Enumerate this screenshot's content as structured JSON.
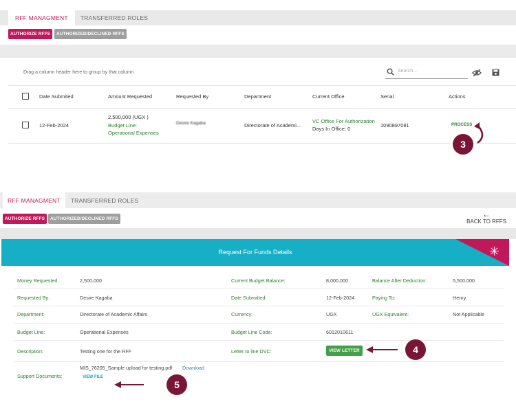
{
  "panel1": {
    "tabs": [
      "RFF MANAGMENT",
      "TRANSFERRED ROLES"
    ],
    "buttons": {
      "authorize": "AUTHORIZE RFFS",
      "authorized_declined": "AUTHORIZED/DECLINED RFFS"
    },
    "group_hint": "Drag a column header here to group by that column",
    "search_placeholder": "Search...",
    "columns": [
      "Date Submited",
      "Amount Requested",
      "Requested By",
      "Department",
      "Current Office",
      "Serial",
      "Actions"
    ],
    "row": {
      "date": "12-Feb-2024",
      "amount": "2,500,000 (UGX )",
      "budget_line_label": "Budget Line:",
      "budget_line_value": "Operational Expenses",
      "requested_by": "Desire Kagaba",
      "department": "Directorate of Academi...",
      "office": "VC Office For Authorization",
      "days": "Days In Office: 0",
      "serial": "1090897081",
      "action": "PROCESS"
    },
    "callout": "3"
  },
  "panel2": {
    "tabs": [
      "RFF MANAGMENT",
      "TRANSFERRED ROLES"
    ],
    "buttons": {
      "authorize": "AUTHORIZE RFFS",
      "authorized_declined": "AUTHORIZED/DECLINED RFFS"
    },
    "back_arrow": "←",
    "back_label": "BACK TO RFFS",
    "title": "Request For Funds Details",
    "corner_icon": "✳",
    "rows": [
      {
        "l1": "Money Requested:",
        "v1": "2,500,000",
        "l2": "Current Budget Balance:",
        "v2": "8,000,000",
        "l3": "Balance After Deduction:",
        "v3": "5,500,000"
      },
      {
        "l1": "Requested By:",
        "v1": "Desire Kagaba",
        "l2": "Date Submitted:",
        "v2": "12-Feb-2024",
        "l3": "Paying To:",
        "v3": "Henry"
      },
      {
        "l1": "Department:",
        "v1": "Directorate of Academic Affairs",
        "l2": "Currency:",
        "v2": "UGX",
        "l3": "UGX Equivalent:",
        "v3": "Not Applicable"
      },
      {
        "l1": "Budget Line:",
        "v1": "Operational Expenses",
        "l2": "Budget Line Code:",
        "v2": "6012010611",
        "l3": "",
        "v3": ""
      },
      {
        "l1": "Description:",
        "v1": "Testing one for the RFF",
        "l2": "Letter to line DVC:",
        "v2": "",
        "l3": "",
        "v3": ""
      }
    ],
    "view_letter": "VIEW LETTER",
    "support_label": "Support Documents:",
    "file_name": "MIS_76205_Sample upload for testing.pdf",
    "download": "Download",
    "view_file": "VIEW FILE",
    "callout_4": "4",
    "callout_5": "5"
  },
  "colors": {
    "brand": "#c2185b",
    "teal": "#17afc5",
    "green": "#2e7d32",
    "callout": "#7b1535"
  }
}
